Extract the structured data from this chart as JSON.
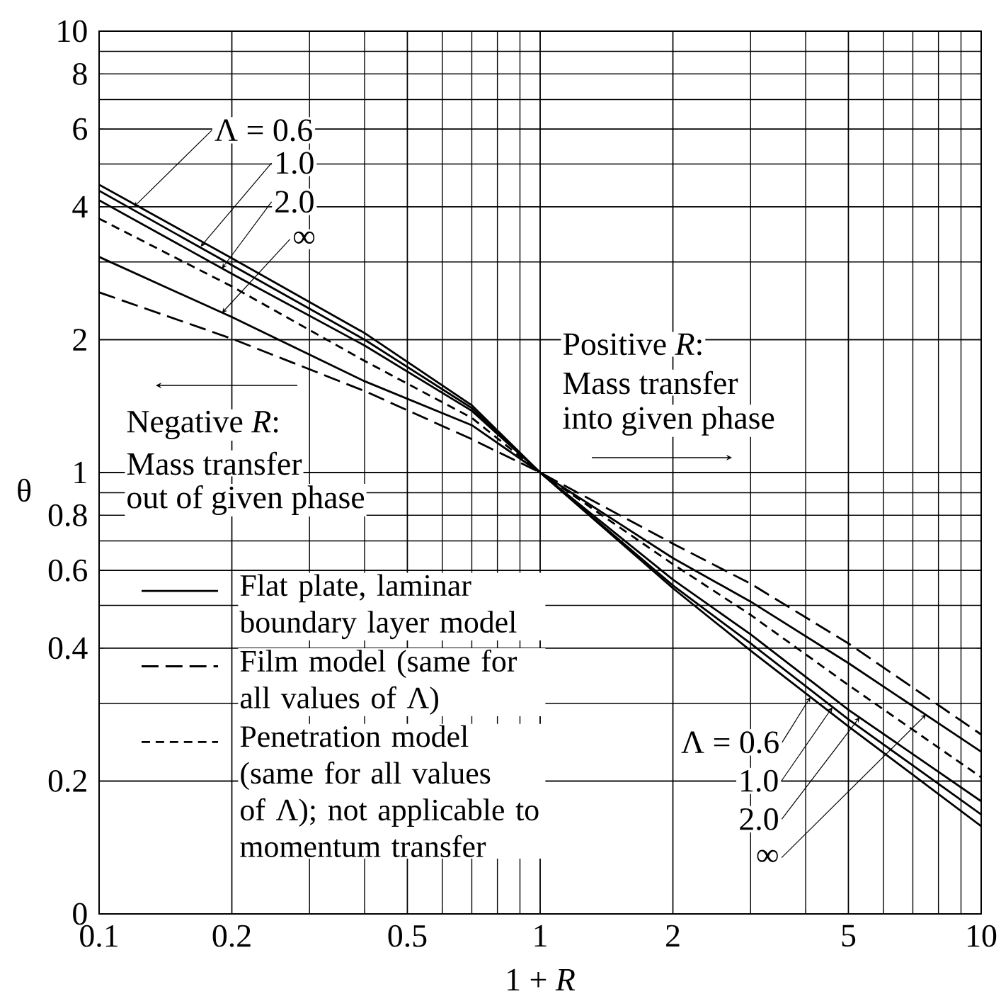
{
  "chart_data": {
    "type": "line",
    "xlabel": "1 + *R*",
    "ylabel": "θ",
    "log": "xy",
    "grid": true,
    "legend": "bottom left",
    "xlim": [
      0.1,
      10
    ],
    "ylim": [
      0.1,
      10
    ],
    "xticks": [
      0.1,
      0.2,
      0.5,
      1,
      2,
      5,
      10
    ],
    "yticks": [
      0.2,
      0.4,
      0.6,
      0.8,
      1,
      2,
      4,
      6,
      8,
      10,
      {
        "value": 0.1,
        "label": "0"
      }
    ],
    "x": [
      0.1,
      0.2,
      0.4,
      0.7,
      1,
      2,
      3,
      5,
      10
    ],
    "series": [
      {
        "name": "Flat plate, laminar boundary layer model",
        "color": "#000000",
        "line_style": "solid",
        "values": [
          4.49,
          3.06,
          2.07,
          1.42,
          1,
          0.547,
          0.395,
          0.266,
          0.158
        ]
      },
      {
        "color": "#000000",
        "line_style": "solid",
        "values": [
          4.35,
          2.95,
          2.0,
          1.4,
          1,
          0.555,
          0.41,
          0.276,
          0.168
        ]
      },
      {
        "color": "#000000",
        "line_style": "solid",
        "values": [
          4.14,
          2.82,
          1.94,
          1.38,
          1,
          0.572,
          0.43,
          0.29,
          0.18
        ]
      },
      {
        "color": "#000000",
        "line_style": "solid",
        "values": [
          3.08,
          2.25,
          1.61,
          1.28,
          1,
          0.64,
          0.51,
          0.37,
          0.233
        ]
      },
      {
        "name": "Film model (same for all values of Λ)",
        "color": "#000000",
        "line_style": "dashed",
        "values": [
          2.56,
          2.01,
          1.53,
          1.19,
          1,
          0.69,
          0.56,
          0.41,
          0.255
        ]
      },
      {
        "name": "Penetration model (same for all values of Λ); not applicable to momentum transfer",
        "color": "#000000",
        "line_style": "dashed",
        "values": [
          3.76,
          2.64,
          1.79,
          1.33,
          1,
          0.62,
          0.476,
          0.33,
          0.204
        ]
      }
    ],
    "annotations": [
      {
        "text": "Λ = 0.6",
        "x": 0.12,
        "y": 4.0
      },
      {
        "text": "1.0",
        "x": 0.17,
        "y": 3.25
      },
      {
        "text": "2.0",
        "x": 0.19,
        "y": 2.9
      },
      {
        "text": "∞",
        "x": 0.19,
        "y": 2.3
      },
      {
        "text": "Λ = 0.6",
        "x": 4.1,
        "y": 0.31
      },
      {
        "text": "1.0",
        "x": 4.6,
        "y": 0.294
      },
      {
        "text": "2.0",
        "x": 5.3,
        "y": 0.279
      },
      {
        "text": "∞",
        "x": 7.5,
        "y": 0.283
      },
      "Negative *R*:",
      "Mass transfer",
      "out of given phase",
      "Positive *R*:",
      "Mass transfer",
      "into given phase"
    ]
  }
}
